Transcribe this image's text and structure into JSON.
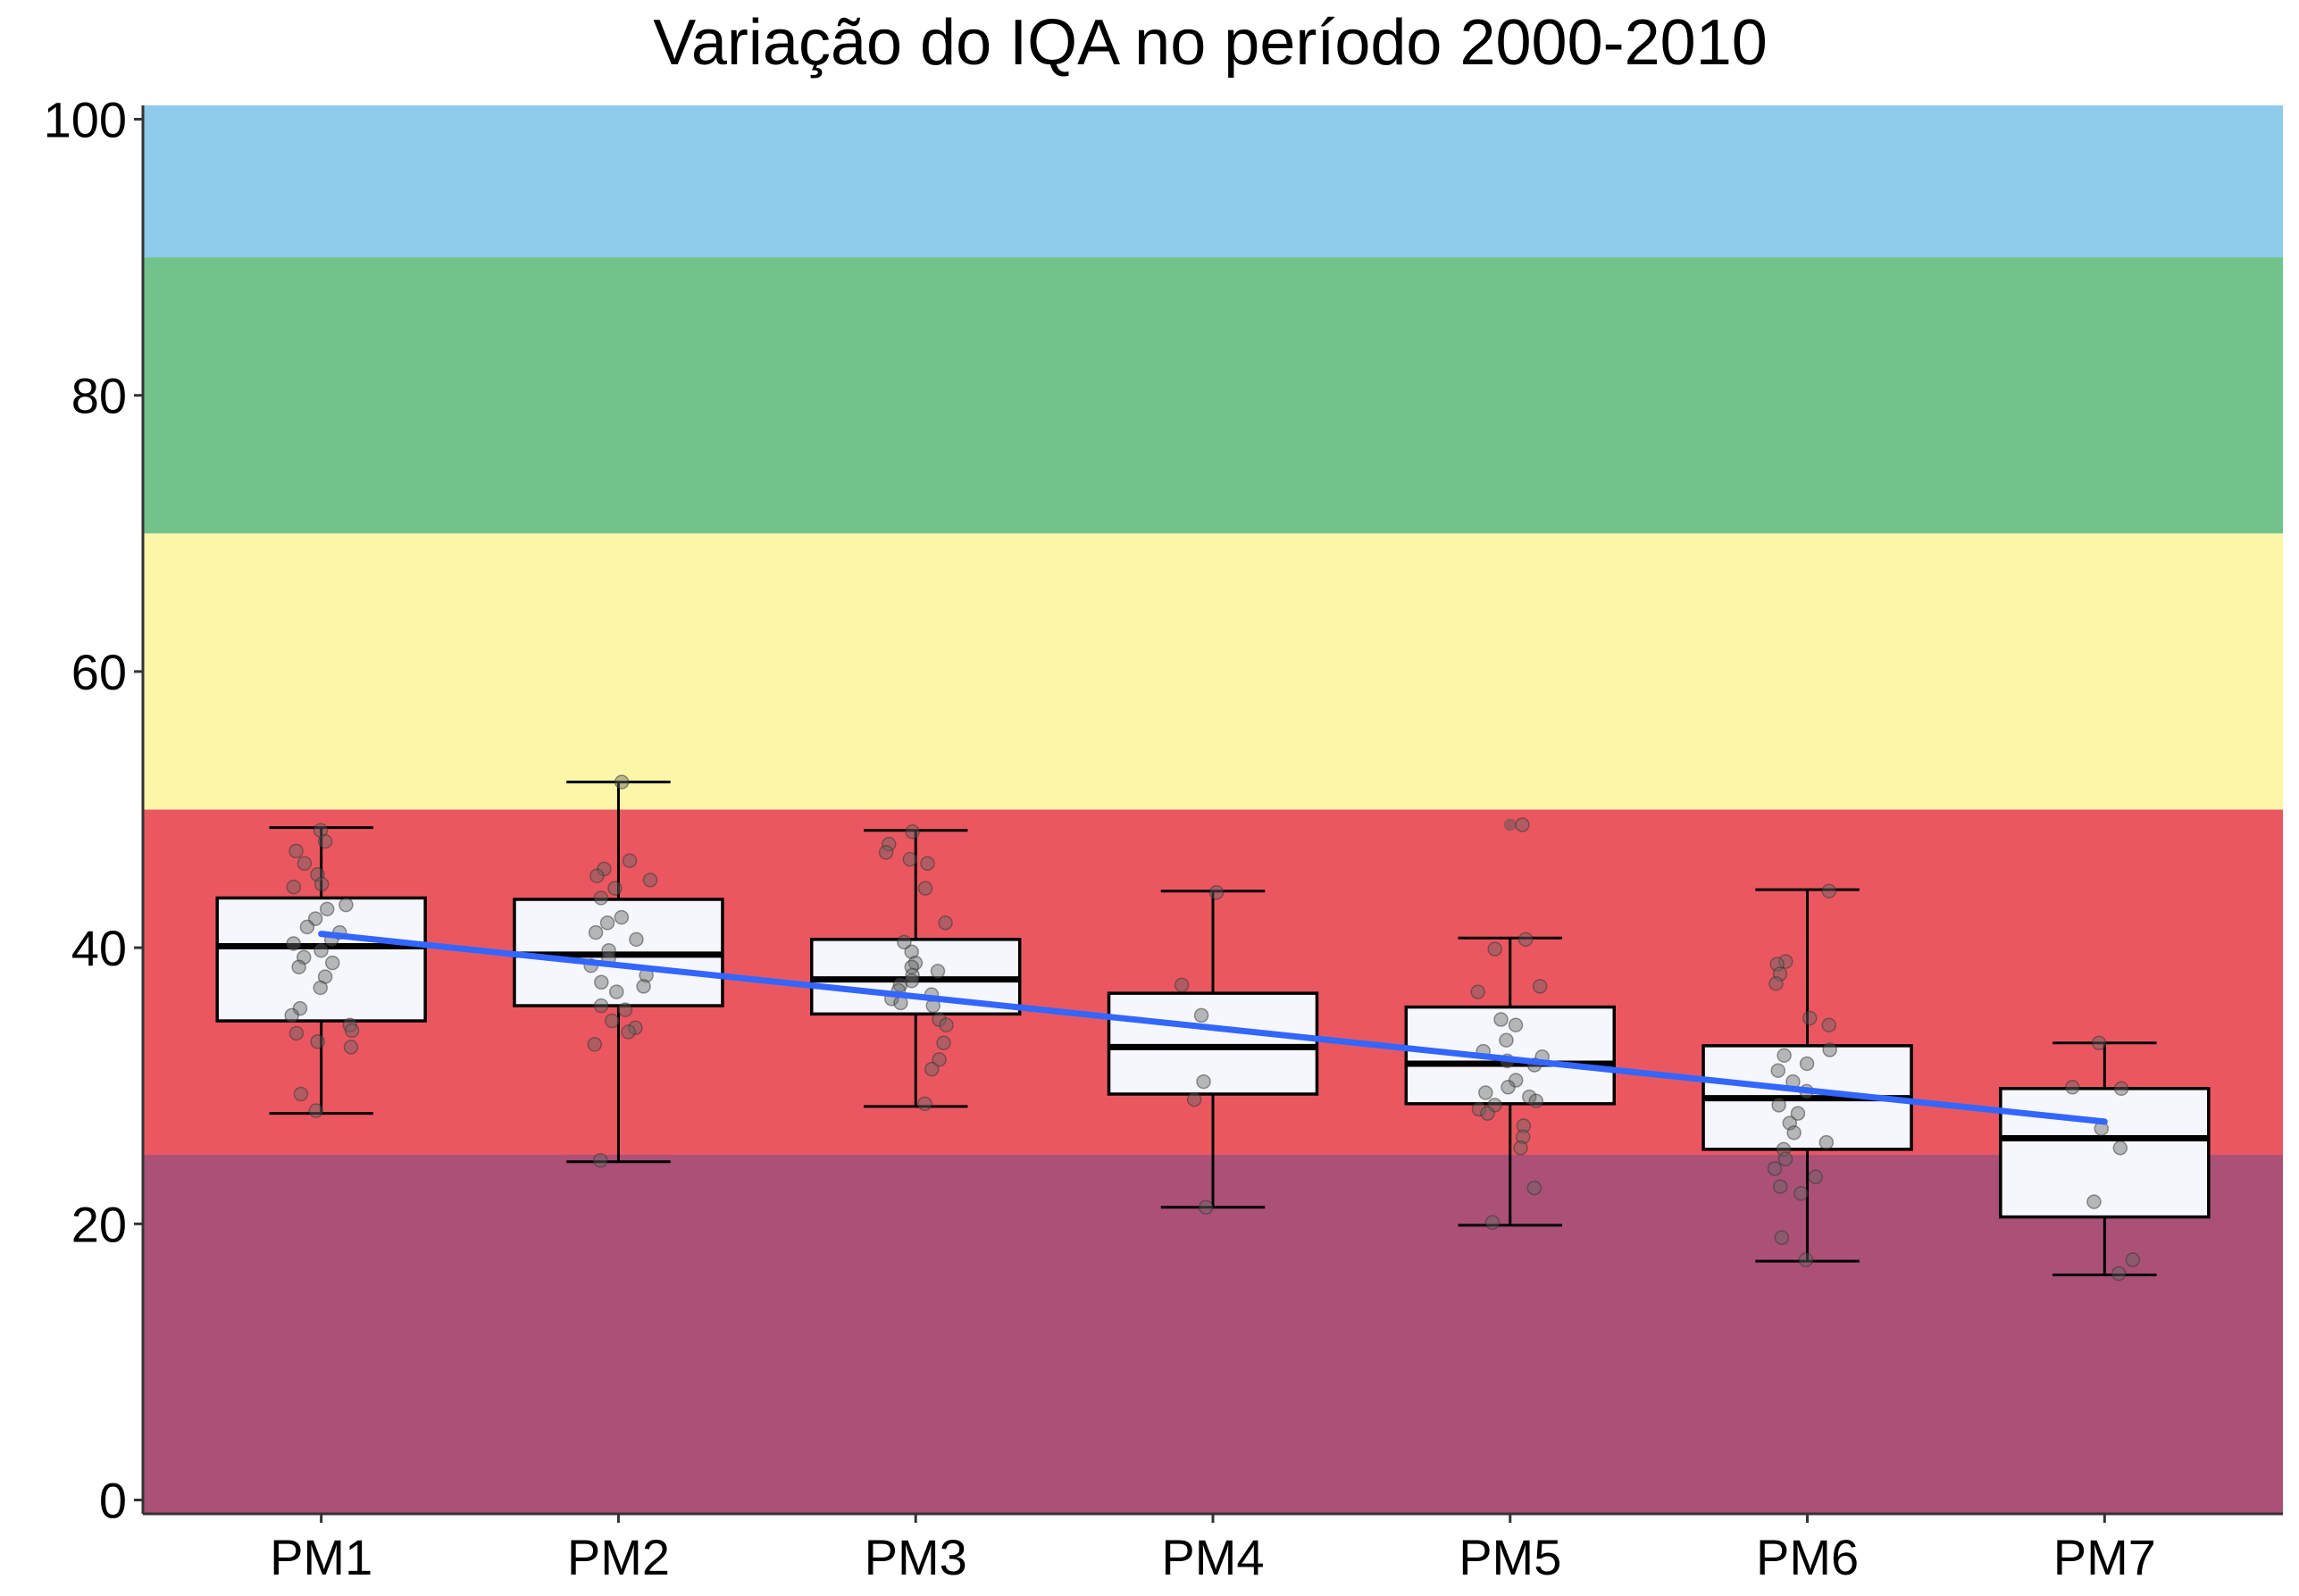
{
  "chart_data": {
    "type": "boxplot",
    "title": "Variação do IQA no período 2000-2010",
    "xlabel": "",
    "ylabel": "",
    "ylim": [
      -1,
      101
    ],
    "y_ticks": [
      0,
      20,
      40,
      60,
      80,
      100
    ],
    "categories": [
      "PM1",
      "PM2",
      "PM3",
      "PM4",
      "PM5",
      "PM6",
      "PM7"
    ],
    "background_bands": [
      {
        "from": -1,
        "to": 25,
        "color": "#AB5077"
      },
      {
        "from": 25,
        "to": 50,
        "color": "#EB5760"
      },
      {
        "from": 50,
        "to": 70,
        "color": "#FCF6A9"
      },
      {
        "from": 70,
        "to": 90,
        "color": "#72C28C"
      },
      {
        "from": 90,
        "to": 101,
        "color": "#8FCBEA"
      }
    ],
    "boxes": [
      {
        "category": "PM1",
        "whisker_low": 28.0,
        "q1": 34.7,
        "median": 40.1,
        "q3": 43.6,
        "whisker_high": 48.7
      },
      {
        "category": "PM2",
        "whisker_low": 24.5,
        "q1": 35.8,
        "median": 39.5,
        "q3": 43.5,
        "whisker_high": 52.0
      },
      {
        "category": "PM3",
        "whisker_low": 28.5,
        "q1": 35.2,
        "median": 37.7,
        "q3": 40.6,
        "whisker_high": 48.5
      },
      {
        "category": "PM4",
        "whisker_low": 21.2,
        "q1": 29.4,
        "median": 32.8,
        "q3": 36.7,
        "whisker_high": 44.1
      },
      {
        "category": "PM5",
        "whisker_low": 19.9,
        "q1": 28.7,
        "median": 31.6,
        "q3": 35.7,
        "whisker_high": 40.7
      },
      {
        "category": "PM6",
        "whisker_low": 17.3,
        "q1": 25.4,
        "median": 29.1,
        "q3": 32.9,
        "whisker_high": 44.2
      },
      {
        "category": "PM7",
        "whisker_low": 16.3,
        "q1": 20.5,
        "median": 26.2,
        "q3": 29.8,
        "whisker_high": 33.1
      }
    ],
    "outliers": [
      {
        "category": "PM5",
        "value": 48.9
      }
    ],
    "points": [
      {
        "category": "PM1",
        "values": [
          48.5,
          47.7,
          47.0,
          46.1,
          45.3,
          44.6,
          44.4,
          43.1,
          42.8,
          42.1,
          41.5,
          41.1,
          40.6,
          40.3,
          39.8,
          39.3,
          38.9,
          38.6,
          37.9,
          37.1,
          35.6,
          35.1,
          34.4,
          34.0,
          33.8,
          33.2,
          32.8,
          29.4,
          28.2
        ]
      },
      {
        "category": "PM2",
        "values": [
          52.0,
          46.3,
          45.7,
          45.2,
          44.9,
          44.3,
          43.6,
          42.2,
          41.8,
          41.1,
          40.6,
          39.8,
          39.2,
          38.7,
          38.0,
          37.5,
          37.2,
          36.8,
          35.8,
          35.5,
          34.7,
          34.2,
          33.9,
          33.0,
          24.6
        ]
      },
      {
        "category": "PM3",
        "values": [
          48.4,
          47.5,
          46.9,
          46.4,
          46.1,
          44.3,
          41.8,
          40.4,
          39.7,
          38.9,
          38.6,
          38.3,
          38.0,
          37.6,
          37.3,
          36.9,
          36.6,
          36.3,
          36.0,
          35.8,
          34.8,
          34.4,
          33.1,
          31.9,
          31.2,
          28.7
        ]
      },
      {
        "category": "PM4",
        "values": [
          44.0,
          37.3,
          35.1,
          30.3,
          29.0,
          21.2
        ]
      },
      {
        "category": "PM5",
        "values": [
          48.9,
          40.6,
          39.9,
          37.2,
          36.8,
          34.8,
          34.4,
          33.3,
          32.5,
          32.1,
          31.8,
          31.5,
          30.4,
          29.9,
          29.5,
          29.2,
          28.9,
          28.6,
          28.3,
          28.0,
          27.1,
          26.3,
          25.5,
          22.6,
          20.1
        ]
      },
      {
        "category": "PM6",
        "values": [
          44.1,
          39.0,
          38.8,
          38.1,
          37.4,
          34.9,
          34.4,
          32.6,
          32.2,
          31.6,
          31.1,
          30.3,
          29.6,
          28.6,
          28.0,
          27.3,
          26.6,
          25.9,
          25.4,
          24.7,
          24.0,
          23.4,
          22.7,
          22.2,
          19.0,
          17.4
        ]
      },
      {
        "category": "PM7",
        "values": [
          33.1,
          29.9,
          29.8,
          26.9,
          25.5,
          21.6,
          17.4,
          16.4
        ]
      }
    ],
    "trend_line": {
      "color": "#3366FF",
      "x": [
        "PM1",
        "PM7"
      ],
      "y": [
        41.0,
        27.4
      ]
    },
    "grid": false,
    "legend": "none"
  }
}
